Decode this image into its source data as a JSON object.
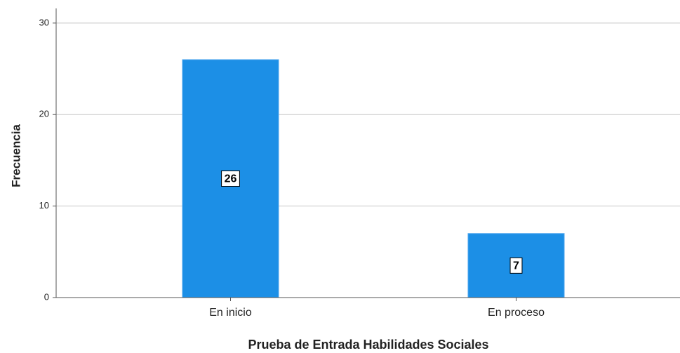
{
  "chart_data": {
    "type": "bar",
    "categories": [
      "En inicio",
      "En proceso"
    ],
    "values": [
      26,
      7
    ],
    "color": "#1c8fe6",
    "xlabel": "Prueba de Entrada Habilidades Sociales",
    "ylabel": "Frecuencia",
    "ylim": [
      0,
      31.6
    ],
    "yticks": [
      0,
      10,
      20,
      30
    ],
    "grid": true,
    "data_labels": true
  }
}
